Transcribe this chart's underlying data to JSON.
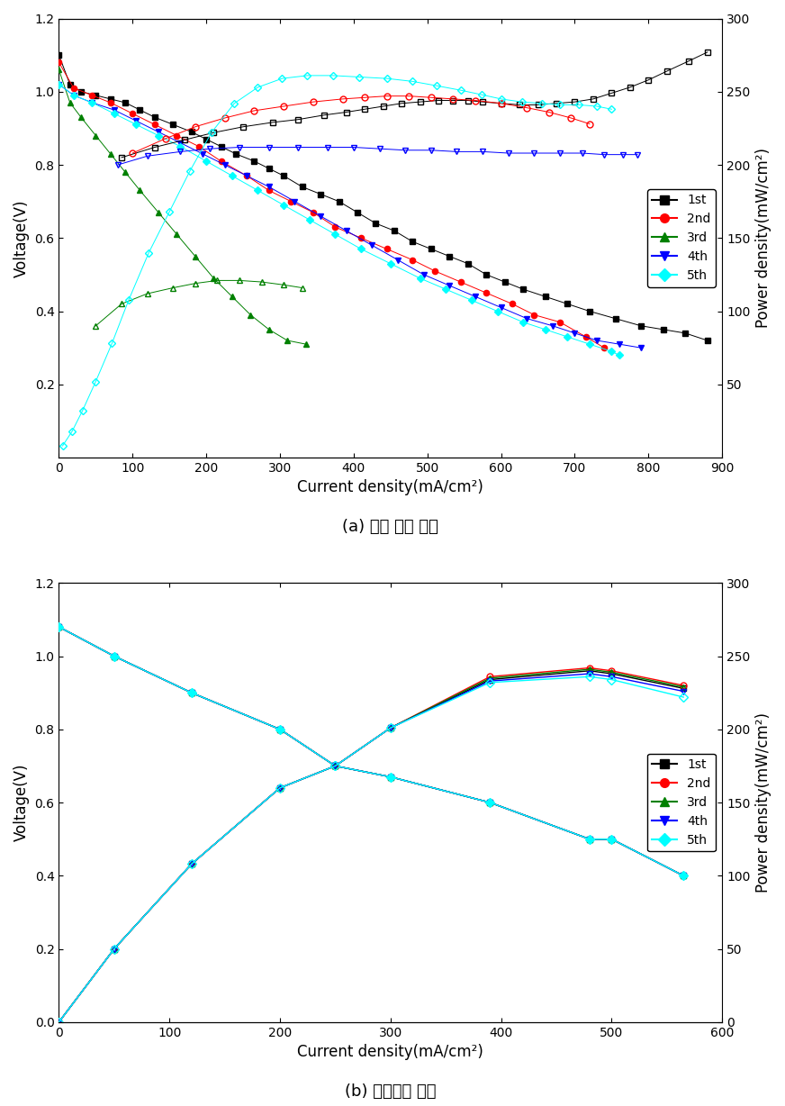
{
  "panel_a": {
    "title": "(a) 실제 실험 결과",
    "xlabel": "Current density(mA/cm²)",
    "ylabel_left": "Voltage(V)",
    "ylabel_right": "Power density(mW/cm²)",
    "xlim": [
      0,
      900
    ],
    "ylim_left": [
      0,
      1.2
    ],
    "ylim_right": [
      0,
      300
    ],
    "yticks_left": [
      0.2,
      0.4,
      0.6,
      0.8,
      1.0,
      1.2
    ],
    "yticks_right": [
      50,
      100,
      150,
      200,
      250,
      300
    ],
    "xticks": [
      0,
      100,
      200,
      300,
      400,
      500,
      600,
      700,
      800,
      900
    ]
  },
  "panel_b": {
    "title": "(b) 수치해석 결과",
    "xlabel": "Current density(mA/cm²)",
    "ylabel_left": "Voltage(V)",
    "ylabel_right": "Power density(mW/cm²)",
    "xlim": [
      0,
      600
    ],
    "ylim_left": [
      0.0,
      1.2
    ],
    "ylim_right": [
      0,
      300
    ],
    "yticks_left": [
      0.0,
      0.2,
      0.4,
      0.6,
      0.8,
      1.0,
      1.2
    ],
    "yticks_right": [
      0,
      50,
      100,
      150,
      200,
      250,
      300
    ],
    "xticks": [
      0,
      100,
      200,
      300,
      400,
      500,
      600
    ]
  }
}
